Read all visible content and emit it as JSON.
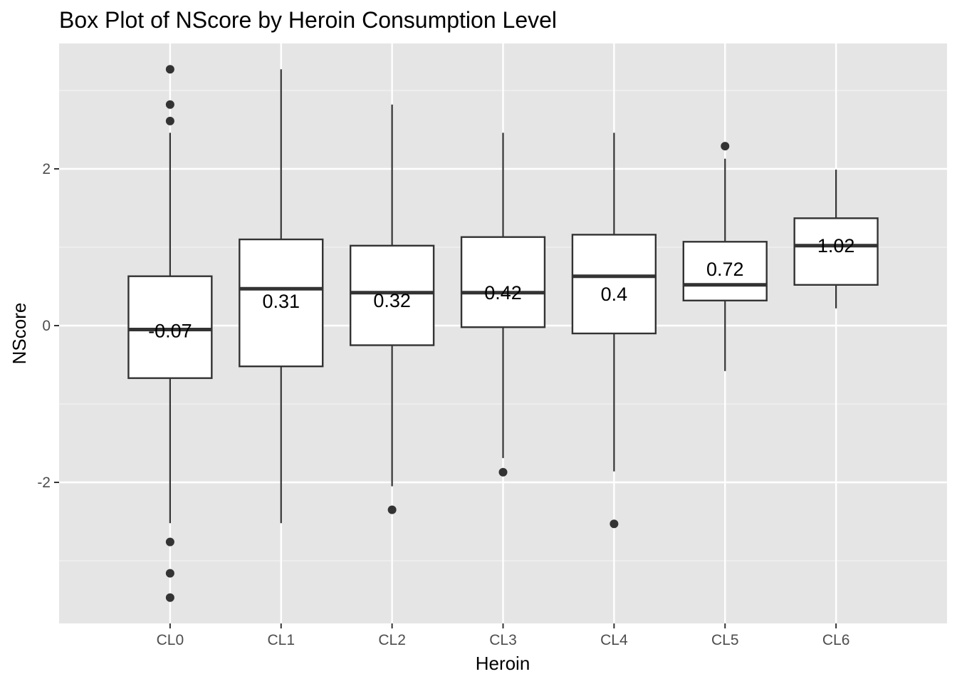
{
  "chart_data": {
    "type": "box",
    "title": "Box Plot of NScore by Heroin Consumption Level",
    "xlabel": "Heroin",
    "ylabel": "NScore",
    "ylim": [
      -3.8,
      3.6
    ],
    "yticks": [
      -2,
      0,
      2
    ],
    "grid": true,
    "categories": [
      "CL0",
      "CL1",
      "CL2",
      "CL3",
      "CL4",
      "CL5",
      "CL6"
    ],
    "boxes": [
      {
        "category": "CL0",
        "whisker_low": -2.52,
        "q1": -0.67,
        "median": -0.05,
        "q3": 0.63,
        "whisker_high": 2.46,
        "outliers": [
          3.27,
          2.82,
          2.61,
          -2.76,
          -3.16,
          -3.47
        ],
        "mean_label": "-0.07",
        "mean": -0.07
      },
      {
        "category": "CL1",
        "whisker_low": -2.52,
        "q1": -0.52,
        "median": 0.47,
        "q3": 1.1,
        "whisker_high": 3.27,
        "outliers": [],
        "mean_label": "0.31",
        "mean": 0.31
      },
      {
        "category": "CL2",
        "whisker_low": -2.05,
        "q1": -0.25,
        "median": 0.42,
        "q3": 1.02,
        "whisker_high": 2.82,
        "outliers": [
          -2.35
        ],
        "mean_label": "0.32",
        "mean": 0.32
      },
      {
        "category": "CL3",
        "whisker_low": -1.69,
        "q1": -0.02,
        "median": 0.42,
        "q3": 1.13,
        "whisker_high": 2.46,
        "outliers": [
          -1.87
        ],
        "mean_label": "0.42",
        "mean": 0.42
      },
      {
        "category": "CL4",
        "whisker_low": -1.86,
        "q1": -0.1,
        "median": 0.63,
        "q3": 1.16,
        "whisker_high": 2.46,
        "outliers": [
          -2.53
        ],
        "mean_label": "0.4",
        "mean": 0.4
      },
      {
        "category": "CL5",
        "whisker_low": -0.58,
        "q1": 0.32,
        "median": 0.52,
        "q3": 1.07,
        "whisker_high": 2.13,
        "outliers": [
          2.29
        ],
        "mean_label": "0.72",
        "mean": 0.72
      },
      {
        "category": "CL6",
        "whisker_low": 0.22,
        "q1": 0.52,
        "median": 1.02,
        "q3": 1.37,
        "whisker_high": 1.99,
        "outliers": [],
        "mean_label": "1.02",
        "mean": 1.02
      }
    ]
  }
}
